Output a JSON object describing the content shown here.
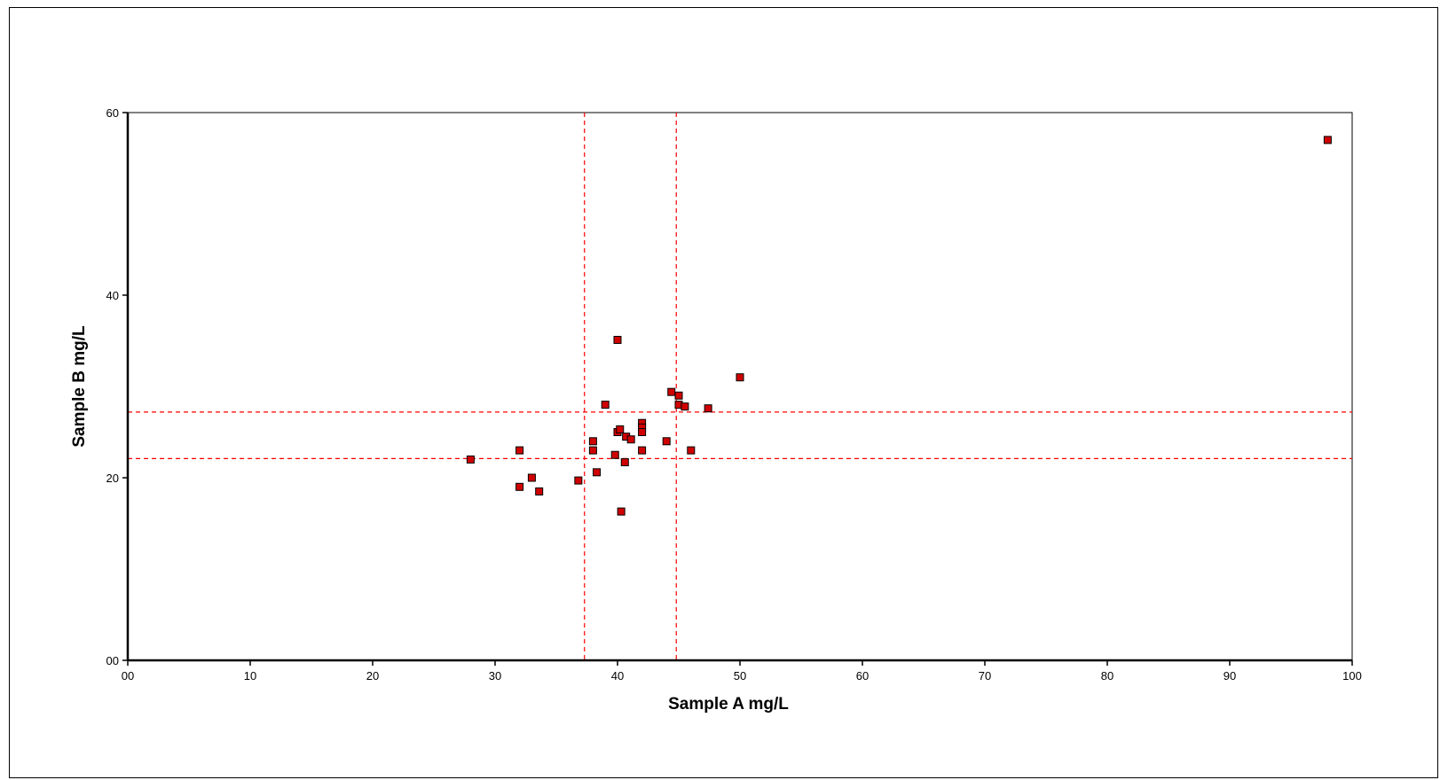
{
  "chart_data": {
    "type": "scatter",
    "title": "",
    "xlabel": "Sample A mg/L",
    "ylabel": "Sample B mg/L",
    "xlim": [
      0,
      100
    ],
    "ylim": [
      0,
      60
    ],
    "x_ticks": [
      "00",
      "10",
      "20",
      "30",
      "40",
      "50",
      "60",
      "70",
      "80",
      "90",
      "100"
    ],
    "y_ticks": [
      "00",
      "20",
      "40",
      "60"
    ],
    "grid": false,
    "legend": "none",
    "marker_color": "#d00000",
    "reference_line_color": "#ff0000",
    "reference_lines": {
      "x": [
        37.3,
        44.8
      ],
      "y": [
        22.1,
        27.2
      ]
    },
    "series": [
      {
        "points": [
          [
            28,
            22
          ],
          [
            32,
            23
          ],
          [
            32,
            19
          ],
          [
            33,
            20
          ],
          [
            33.6,
            18.5
          ],
          [
            36.8,
            19.7
          ],
          [
            38,
            24
          ],
          [
            38,
            23
          ],
          [
            38.3,
            20.6
          ],
          [
            39,
            28
          ],
          [
            39.8,
            22.5
          ],
          [
            40,
            35.1
          ],
          [
            40,
            25
          ],
          [
            40.2,
            25.3
          ],
          [
            40.3,
            16.3
          ],
          [
            40.6,
            21.7
          ],
          [
            40.7,
            24.5
          ],
          [
            41.1,
            24.2
          ],
          [
            42,
            26
          ],
          [
            42,
            25.5
          ],
          [
            42,
            25
          ],
          [
            42,
            23
          ],
          [
            44,
            24
          ],
          [
            44.4,
            29.4
          ],
          [
            45,
            29
          ],
          [
            45,
            28
          ],
          [
            45.5,
            27.8
          ],
          [
            46,
            23
          ],
          [
            47.4,
            27.6
          ],
          [
            50,
            31
          ],
          [
            98,
            57
          ]
        ]
      }
    ]
  }
}
